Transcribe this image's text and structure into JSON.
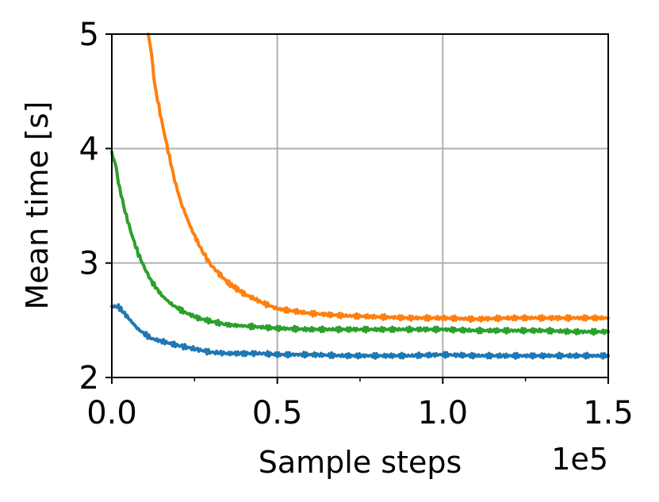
{
  "chart_data": {
    "type": "line",
    "title": "",
    "xlabel": "Sample steps",
    "ylabel": "Mean time [s]",
    "x_offset_label": "1e5",
    "xlim": [
      0.0,
      1.5
    ],
    "ylim": [
      2,
      5
    ],
    "x_ticks": [
      0.0,
      0.5,
      1.0,
      1.5
    ],
    "x_tick_labels": [
      "0.0",
      "0.5",
      "1.0",
      "1.5"
    ],
    "x_minor_ticks": [
      0.25,
      0.75,
      1.25
    ],
    "y_ticks": [
      2,
      3,
      4,
      5
    ],
    "y_tick_labels": [
      "2",
      "3",
      "4",
      "5"
    ],
    "grid": true,
    "legend": "none",
    "series": [
      {
        "color": "#1f77b4",
        "x": [
          0.0,
          0.02,
          0.05,
          0.08,
          0.12,
          0.16,
          0.2,
          0.25,
          0.3,
          0.35,
          0.4,
          0.45,
          0.5,
          0.6,
          0.7,
          0.8,
          0.9,
          1.0,
          1.1,
          1.2,
          1.3,
          1.4,
          1.5
        ],
        "y": [
          2.62,
          2.62,
          2.52,
          2.42,
          2.34,
          2.31,
          2.28,
          2.25,
          2.22,
          2.21,
          2.21,
          2.21,
          2.2,
          2.2,
          2.19,
          2.19,
          2.19,
          2.2,
          2.19,
          2.19,
          2.19,
          2.19,
          2.19
        ]
      },
      {
        "color": "#ff7f0e",
        "x": [
          0.11,
          0.12,
          0.13,
          0.15,
          0.17,
          0.19,
          0.21,
          0.24,
          0.27,
          0.3,
          0.35,
          0.4,
          0.45,
          0.5,
          0.6,
          0.7,
          0.8,
          0.9,
          1.0,
          1.1,
          1.2,
          1.3,
          1.4,
          1.5
        ],
        "y": [
          5.0,
          4.82,
          4.55,
          4.25,
          3.98,
          3.72,
          3.52,
          3.3,
          3.12,
          2.98,
          2.83,
          2.73,
          2.66,
          2.6,
          2.56,
          2.54,
          2.53,
          2.52,
          2.52,
          2.51,
          2.52,
          2.52,
          2.52,
          2.52
        ]
      },
      {
        "color": "#2ca02c",
        "x": [
          0.0,
          0.01,
          0.02,
          0.04,
          0.06,
          0.08,
          0.1,
          0.12,
          0.15,
          0.18,
          0.22,
          0.26,
          0.3,
          0.35,
          0.4,
          0.5,
          0.6,
          0.7,
          0.8,
          0.9,
          1.0,
          1.1,
          1.2,
          1.3,
          1.4,
          1.5
        ],
        "y": [
          3.95,
          3.88,
          3.7,
          3.45,
          3.25,
          3.08,
          2.95,
          2.84,
          2.72,
          2.64,
          2.57,
          2.52,
          2.49,
          2.46,
          2.45,
          2.43,
          2.42,
          2.42,
          2.42,
          2.42,
          2.42,
          2.41,
          2.41,
          2.41,
          2.4,
          2.4
        ]
      }
    ]
  }
}
